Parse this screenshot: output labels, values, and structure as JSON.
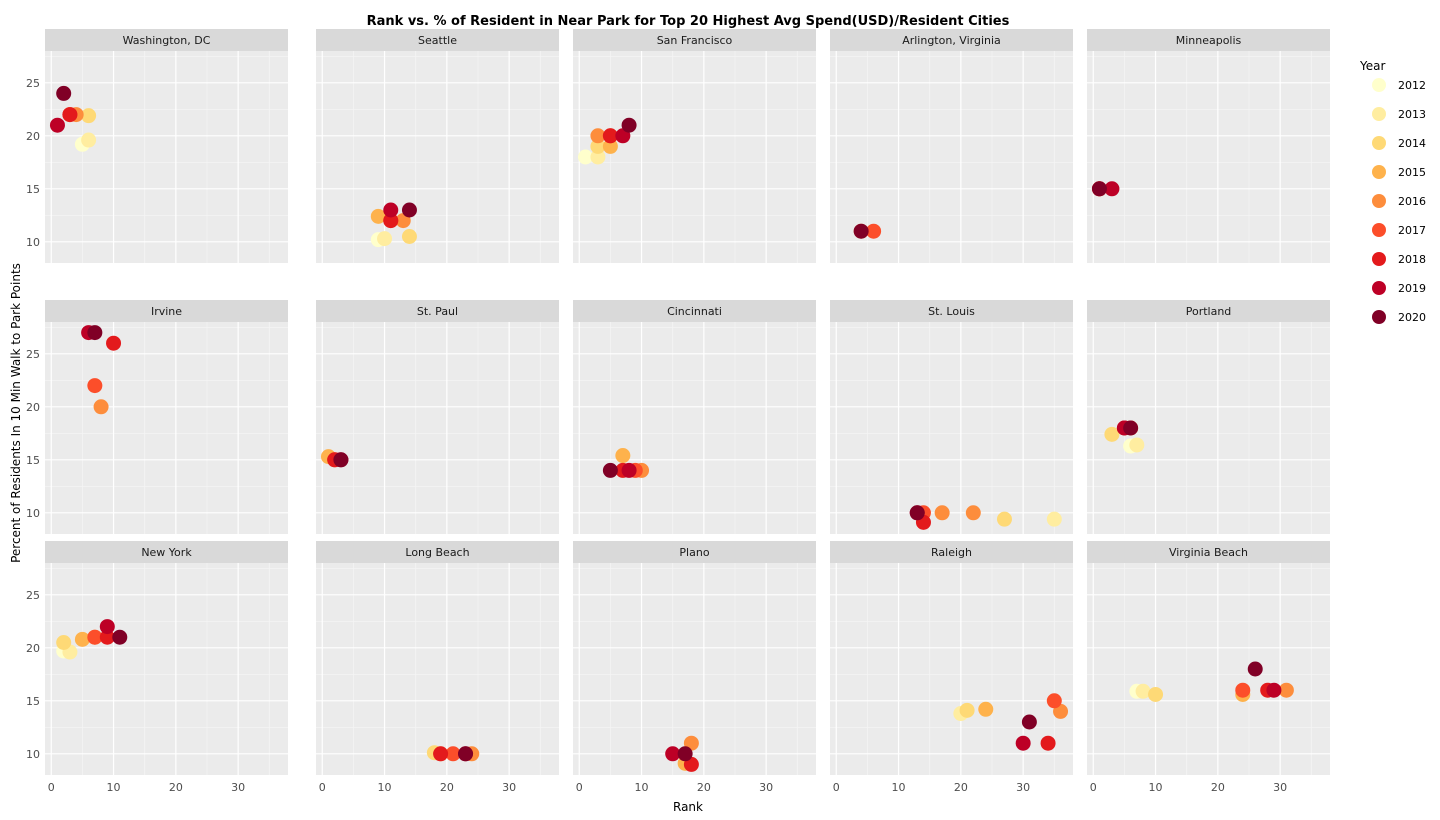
{
  "chart_data": {
    "type": "scatter",
    "title": "Rank vs. % of Resident in Near Park for Top 20 Highest Avg Spend(USD)/Resident Cities",
    "xlabel": "Rank",
    "ylabel": "Percent of Residents In 10 Min Walk to Park Points",
    "x_ticks": [
      0,
      10,
      20,
      30
    ],
    "xlim": [
      -1,
      38
    ],
    "grid": true,
    "legend": {
      "title": "Year",
      "position": "right",
      "entries": [
        {
          "label": "2012",
          "color": "#ffffcc"
        },
        {
          "label": "2013",
          "color": "#ffeda0"
        },
        {
          "label": "2014",
          "color": "#fed976"
        },
        {
          "label": "2015",
          "color": "#feb24c"
        },
        {
          "label": "2016",
          "color": "#fd8d3c"
        },
        {
          "label": "2017",
          "color": "#fc4e2a"
        },
        {
          "label": "2018",
          "color": "#e31a1c"
        },
        {
          "label": "2019",
          "color": "#bd0026"
        },
        {
          "label": "2020",
          "color": "#800026"
        }
      ]
    },
    "rows": [
      {
        "y_ticks": [
          10,
          15,
          20,
          25
        ],
        "ylim": [
          8,
          28
        ]
      },
      {
        "y_ticks": [
          10,
          15,
          20,
          25
        ],
        "ylim": [
          8,
          28
        ]
      },
      {
        "y_ticks": [
          10,
          15,
          20,
          25
        ],
        "ylim": [
          8,
          28
        ]
      }
    ],
    "panels": [
      {
        "name": "Washington, DC",
        "points": [
          [
            5,
            19.2,
            "2012"
          ],
          [
            6,
            19.6,
            "2013"
          ],
          [
            6,
            21.9,
            "2014"
          ],
          [
            3,
            22,
            "2015"
          ],
          [
            4,
            22,
            "2016"
          ],
          [
            3,
            22,
            "2017"
          ],
          [
            3,
            22,
            "2018"
          ],
          [
            1,
            21,
            "2019"
          ],
          [
            2,
            24,
            "2020"
          ]
        ]
      },
      {
        "name": "Seattle",
        "points": [
          [
            9,
            10.2,
            "2012"
          ],
          [
            10,
            10.3,
            "2013"
          ],
          [
            14,
            10.5,
            "2014"
          ],
          [
            9,
            12.4,
            "2015"
          ],
          [
            13,
            12,
            "2016"
          ],
          [
            11,
            12,
            "2017"
          ],
          [
            11,
            12,
            "2018"
          ],
          [
            11,
            13,
            "2019"
          ],
          [
            14,
            13,
            "2020"
          ]
        ]
      },
      {
        "name": "San Francisco",
        "points": [
          [
            1,
            18,
            "2012"
          ],
          [
            3,
            18,
            "2013"
          ],
          [
            3,
            19,
            "2014"
          ],
          [
            5,
            19,
            "2015"
          ],
          [
            3,
            20,
            "2016"
          ],
          [
            5,
            20,
            "2017"
          ],
          [
            5,
            20,
            "2018"
          ],
          [
            7,
            20,
            "2019"
          ],
          [
            8,
            21,
            "2020"
          ]
        ]
      },
      {
        "name": "Arlington, Virginia",
        "points": [
          [
            4,
            11,
            "2016"
          ],
          [
            6,
            11,
            "2017"
          ],
          [
            4,
            11,
            "2020"
          ]
        ]
      },
      {
        "name": "Minneapolis",
        "points": [
          [
            1,
            15,
            "2016"
          ],
          [
            1,
            15,
            "2017"
          ],
          [
            1,
            15,
            "2018"
          ],
          [
            3,
            15,
            "2019"
          ],
          [
            1,
            15,
            "2020"
          ]
        ]
      },
      {
        "name": "Irvine",
        "points": [
          [
            8,
            20,
            "2016"
          ],
          [
            7,
            22,
            "2017"
          ],
          [
            10,
            26,
            "2018"
          ],
          [
            6,
            27,
            "2019"
          ],
          [
            7,
            27,
            "2020"
          ]
        ]
      },
      {
        "name": "St. Paul",
        "points": [
          [
            1,
            15.3,
            "2015"
          ],
          [
            2,
            15,
            "2017"
          ],
          [
            2,
            15,
            "2018"
          ],
          [
            3,
            15,
            "2019"
          ],
          [
            3,
            15,
            "2020"
          ]
        ]
      },
      {
        "name": "Cincinnati",
        "points": [
          [
            7,
            15.4,
            "2015"
          ],
          [
            10,
            14,
            "2016"
          ],
          [
            9,
            14,
            "2017"
          ],
          [
            7,
            14,
            "2018"
          ],
          [
            8,
            14,
            "2019"
          ],
          [
            5,
            14,
            "2020"
          ]
        ]
      },
      {
        "name": "St. Louis",
        "points": [
          [
            35,
            9.4,
            "2013"
          ],
          [
            27,
            9.4,
            "2014"
          ],
          [
            22,
            10,
            "2016"
          ],
          [
            17,
            10,
            "2016"
          ],
          [
            14,
            10,
            "2017"
          ],
          [
            14,
            9.1,
            "2018"
          ],
          [
            13,
            10,
            "2019"
          ],
          [
            13,
            10,
            "2020"
          ]
        ]
      },
      {
        "name": "Portland",
        "points": [
          [
            6,
            16.3,
            "2012"
          ],
          [
            7,
            16.4,
            "2013"
          ],
          [
            3,
            17.4,
            "2014"
          ],
          [
            6,
            18,
            "2015"
          ],
          [
            5,
            18,
            "2016"
          ],
          [
            6,
            18,
            "2017"
          ],
          [
            5,
            18,
            "2018"
          ],
          [
            5,
            18,
            "2019"
          ],
          [
            6,
            18,
            "2020"
          ]
        ]
      },
      {
        "name": "New York",
        "points": [
          [
            2,
            19.7,
            "2012"
          ],
          [
            3,
            19.6,
            "2013"
          ],
          [
            2,
            20.5,
            "2014"
          ],
          [
            5,
            20.8,
            "2015"
          ],
          [
            7,
            21,
            "2016"
          ],
          [
            7,
            21,
            "2017"
          ],
          [
            9,
            21,
            "2018"
          ],
          [
            9,
            22,
            "2019"
          ],
          [
            11,
            21,
            "2020"
          ]
        ]
      },
      {
        "name": "Long Beach",
        "points": [
          [
            18,
            10.1,
            "2014"
          ],
          [
            19,
            10,
            "2015"
          ],
          [
            24,
            10,
            "2016"
          ],
          [
            21,
            10,
            "2017"
          ],
          [
            19,
            10,
            "2018"
          ],
          [
            23,
            10,
            "2019"
          ],
          [
            23,
            10,
            "2020"
          ]
        ]
      },
      {
        "name": "Plano",
        "points": [
          [
            17,
            9.1,
            "2015"
          ],
          [
            18,
            11,
            "2016"
          ],
          [
            18,
            9,
            "2018"
          ],
          [
            15,
            10,
            "2019"
          ],
          [
            17,
            10,
            "2020"
          ]
        ]
      },
      {
        "name": "Raleigh",
        "points": [
          [
            20,
            13.8,
            "2013"
          ],
          [
            21,
            14.1,
            "2014"
          ],
          [
            24,
            14.2,
            "2015"
          ],
          [
            36,
            14,
            "2016"
          ],
          [
            35,
            15,
            "2017"
          ],
          [
            34,
            11,
            "2018"
          ],
          [
            30,
            11,
            "2019"
          ],
          [
            31,
            13,
            "2020"
          ]
        ]
      },
      {
        "name": "Virginia Beach",
        "points": [
          [
            7,
            15.9,
            "2012"
          ],
          [
            8,
            15.9,
            "2013"
          ],
          [
            10,
            15.6,
            "2014"
          ],
          [
            24,
            15.6,
            "2015"
          ],
          [
            31,
            16,
            "2016"
          ],
          [
            24,
            16,
            "2017"
          ],
          [
            28,
            16,
            "2018"
          ],
          [
            29,
            16,
            "2019"
          ],
          [
            26,
            18,
            "2020"
          ]
        ]
      }
    ]
  }
}
